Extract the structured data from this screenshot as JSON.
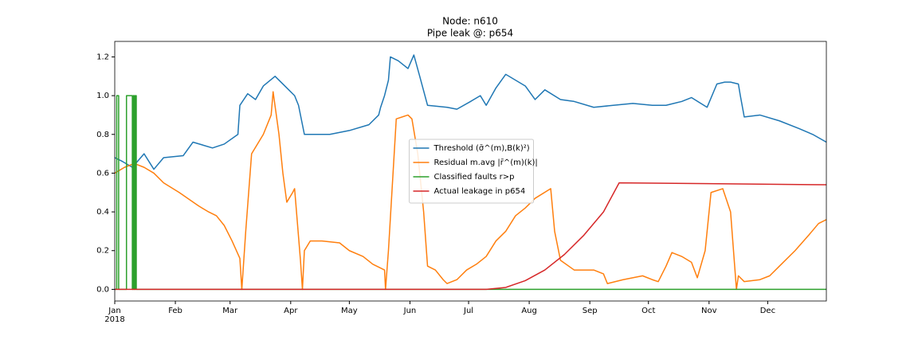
{
  "chart_data": {
    "type": "line",
    "title": "Node: n610",
    "subtitle": "Pipe leak @: p654",
    "x_year_label": "2018",
    "xlim": [
      0,
      364
    ],
    "xticks": [
      {
        "value": 0,
        "label": "Jan"
      },
      {
        "value": 31,
        "label": "Feb"
      },
      {
        "value": 59,
        "label": "Mar"
      },
      {
        "value": 90,
        "label": "Apr"
      },
      {
        "value": 120,
        "label": "May"
      },
      {
        "value": 151,
        "label": "Jun"
      },
      {
        "value": 181,
        "label": "Jul"
      },
      {
        "value": 212,
        "label": "Aug"
      },
      {
        "value": 243,
        "label": "Sep"
      },
      {
        "value": 273,
        "label": "Oct"
      },
      {
        "value": 304,
        "label": "Nov"
      },
      {
        "value": 334,
        "label": "Dec"
      }
    ],
    "ylim": [
      -0.06,
      1.28
    ],
    "yticks": [
      {
        "value": 0,
        "label": "0.0"
      },
      0.2,
      0.4,
      0.6,
      0.8,
      {
        "value": 1,
        "label": "1.0"
      },
      1.2
    ],
    "legend": "center",
    "series": [
      {
        "name": "Threshold (σ̄^(m),B(k)²)",
        "color": "#1f77b4",
        "x": [
          0,
          4,
          9,
          15,
          20,
          25,
          35,
          40,
          50,
          56,
          63,
          64,
          68,
          72,
          76,
          82,
          87,
          92,
          94,
          97,
          110,
          120,
          130,
          135,
          136,
          138,
          140,
          141,
          145,
          150,
          153,
          156,
          160,
          170,
          175,
          182,
          187,
          190,
          195,
          200,
          210,
          215,
          220,
          228,
          235,
          245,
          255,
          265,
          275,
          282,
          290,
          295,
          303,
          308,
          312,
          315,
          319,
          320,
          322,
          330,
          340,
          350,
          357,
          364
        ],
        "values": [
          0.68,
          0.66,
          0.63,
          0.7,
          0.62,
          0.68,
          0.69,
          0.76,
          0.73,
          0.75,
          0.8,
          0.95,
          1.01,
          0.98,
          1.05,
          1.1,
          1.05,
          1.0,
          0.95,
          0.8,
          0.8,
          0.82,
          0.85,
          0.9,
          0.94,
          1.0,
          1.08,
          1.2,
          1.18,
          1.14,
          1.21,
          1.1,
          0.95,
          0.94,
          0.93,
          0.97,
          1.0,
          0.95,
          1.04,
          1.11,
          1.05,
          0.98,
          1.03,
          0.98,
          0.97,
          0.94,
          0.95,
          0.96,
          0.95,
          0.95,
          0.97,
          0.99,
          0.94,
          1.06,
          1.07,
          1.07,
          1.06,
          1.0,
          0.89,
          0.9,
          0.87,
          0.83,
          0.8,
          0.76
        ]
      },
      {
        "name": "Residual m.avg |r̄^(m)(k)|",
        "color": "#ff7f0e",
        "x": [
          0,
          5,
          10,
          15,
          20,
          25,
          33,
          43,
          48,
          52,
          56,
          60,
          64,
          65,
          67,
          70,
          76,
          80,
          81,
          84,
          86,
          88,
          91,
          92,
          95,
          96,
          97,
          100,
          106,
          115,
          120,
          127,
          132,
          138,
          138.5,
          140,
          144,
          150,
          152,
          155,
          158,
          160,
          164,
          168,
          170,
          175,
          180,
          185,
          190,
          195,
          200,
          205,
          210,
          215,
          223,
          225,
          228,
          235,
          245,
          250,
          252,
          260,
          270,
          275,
          278,
          282,
          285,
          290,
          295,
          298,
          302,
          305,
          311,
          315,
          318,
          319,
          322,
          330,
          335,
          340,
          348,
          355,
          360,
          364
        ],
        "values": [
          0.6,
          0.63,
          0.65,
          0.63,
          0.6,
          0.55,
          0.5,
          0.43,
          0.4,
          0.38,
          0.33,
          0.25,
          0.16,
          0.0,
          0.3,
          0.7,
          0.8,
          0.9,
          1.02,
          0.8,
          0.6,
          0.45,
          0.5,
          0.52,
          0.15,
          0.0,
          0.2,
          0.25,
          0.25,
          0.24,
          0.2,
          0.17,
          0.13,
          0.1,
          0.0,
          0.2,
          0.88,
          0.9,
          0.88,
          0.7,
          0.4,
          0.12,
          0.1,
          0.05,
          0.03,
          0.05,
          0.1,
          0.13,
          0.17,
          0.25,
          0.3,
          0.38,
          0.42,
          0.47,
          0.52,
          0.3,
          0.15,
          0.1,
          0.1,
          0.08,
          0.03,
          0.05,
          0.07,
          0.05,
          0.04,
          0.12,
          0.19,
          0.17,
          0.14,
          0.06,
          0.2,
          0.5,
          0.52,
          0.4,
          0.0,
          0.07,
          0.04,
          0.05,
          0.07,
          0.12,
          0.2,
          0.28,
          0.34,
          0.36
        ]
      },
      {
        "name": "Classified faults r>p",
        "color": "#2ca02c",
        "x": [
          0,
          1,
          1,
          2,
          2,
          6,
          6,
          9,
          9,
          9.5,
          9.5,
          10,
          10,
          10.5,
          10.5,
          11,
          11,
          364
        ],
        "values": [
          0,
          0,
          1,
          1,
          0,
          0,
          1,
          1,
          0,
          0,
          1,
          1,
          0,
          0,
          1,
          1,
          0,
          0
        ]
      },
      {
        "name": "Actual leakage in p654",
        "color": "#d62728",
        "x": [
          0,
          190,
          200,
          210,
          220,
          230,
          240,
          250,
          258,
          364
        ],
        "values": [
          0,
          0,
          0.01,
          0.045,
          0.1,
          0.18,
          0.28,
          0.4,
          0.55,
          0.54
        ]
      }
    ]
  }
}
